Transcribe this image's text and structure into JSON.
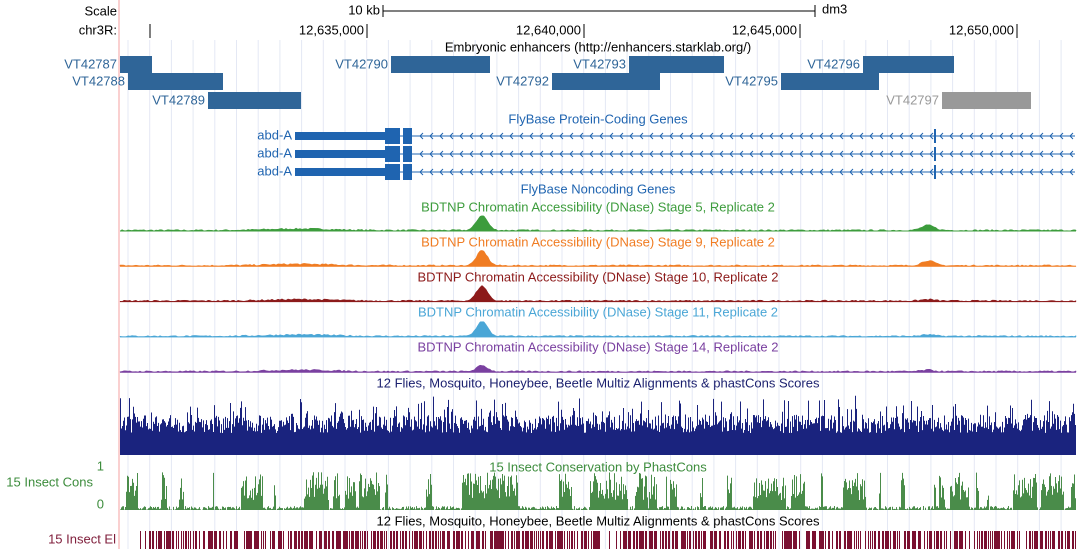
{
  "scale": {
    "label": "Scale",
    "size": "10 kb",
    "assembly": "dm3"
  },
  "position": {
    "chrom": "chr3R:",
    "ticks": [
      "12,635,000",
      "12,640,000",
      "12,645,000",
      "12,650,000"
    ]
  },
  "enhancers": {
    "title": "Embryonic enhancers (http://enhancers.starklab.org/)",
    "items": [
      "VT42787",
      "VT42788",
      "VT42789",
      "VT42790",
      "VT42792",
      "VT42793",
      "VT42795",
      "VT42796",
      "VT42797"
    ]
  },
  "genes": {
    "title": "FlyBase Protein-Coding Genes",
    "items": [
      "abd-A",
      "abd-A",
      "abd-A"
    ]
  },
  "noncoding": {
    "title": "FlyBase Noncoding Genes"
  },
  "dnase": [
    {
      "title": "BDTNP Chromatin Accessibility (DNase) Stage 5, Replicate 2"
    },
    {
      "title": "BDTNP Chromatin Accessibility (DNase) Stage 9, Replicate 2"
    },
    {
      "title": "BDTNP Chromatin Accessibility (DNase) Stage 10, Replicate 2"
    },
    {
      "title": "BDTNP Chromatin Accessibility (DNase) Stage 11, Replicate 2"
    },
    {
      "title": "BDTNP Chromatin Accessibility (DNase) Stage 14, Replicate 2"
    }
  ],
  "multiz": {
    "title": "12 Flies, Mosquito, Honeybee, Beetle Multiz Alignments & phastCons Scores"
  },
  "conservation": {
    "title": "15 Insect Conservation by PhastCons",
    "label": "15 Insect Cons",
    "max": "1",
    "min": "0"
  },
  "elements": {
    "title": "12 Flies, Mosquito, Honeybee, Beetle Multiz Alignments & phastCons Scores",
    "label": "15 Insect El"
  }
}
